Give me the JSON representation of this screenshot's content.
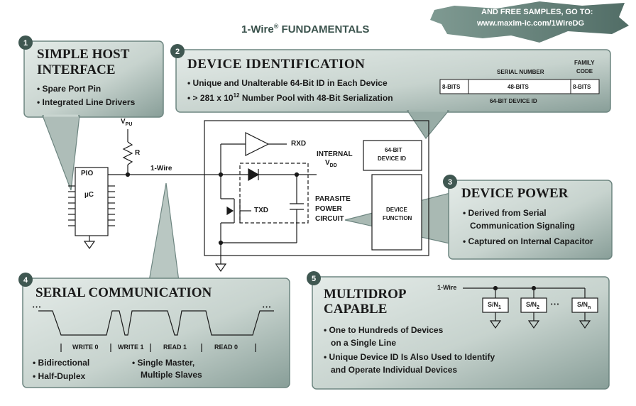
{
  "title": {
    "text": "1-Wire",
    "sup": "®",
    "rest": " FUNDAMENTALS"
  },
  "banner": {
    "line1": "AND FREE SAMPLES, GO TO:",
    "line2": "www.maxim-ic.com/1WireDG"
  },
  "colors": {
    "panel_light": "#d3dcd8",
    "panel_dark": "#7f9690",
    "badge": "#3f5751",
    "line": "#1a1a1a",
    "banner": "#5f7c74"
  },
  "panels": {
    "p1": {
      "badge": "1",
      "title_line1": "SIMPLE HOST",
      "title_line2": "INTERFACE",
      "bullets": [
        "Spare Port Pin",
        "Integrated Line Drivers"
      ]
    },
    "p2": {
      "badge": "2",
      "title": "DEVICE IDENTIFICATION",
      "bullet1": "Unique and Unalterable 64-Bit ID in Each Device",
      "bullet2_pre": "> 281 x 10",
      "bullet2_sup": "12",
      "bullet2_post": " Number Pool with 48-Bit Serialization",
      "id_table": {
        "serial_number_label": "SERIAL NUMBER",
        "family_label_line1": "FAMILY",
        "family_label_line2": "CODE",
        "cells": [
          "8-BITS",
          "48-BITS",
          "8-BITS"
        ],
        "caption": "64-BIT DEVICE ID"
      }
    },
    "p3": {
      "badge": "3",
      "title": "DEVICE POWER",
      "bullet1_line1": "Derived from Serial",
      "bullet1_line2": "Communication Signaling",
      "bullet2": "Captured on Internal Capacitor"
    },
    "p4": {
      "badge": "4",
      "title": "SERIAL COMMUNICATION",
      "slots": [
        "WRITE 0",
        "WRITE 1",
        "READ 1",
        "READ 0"
      ],
      "ellipsis": "• • •",
      "bullets_left": [
        "Bidirectional",
        "Half-Duplex"
      ],
      "bullet_right_line1": "Single Master,",
      "bullet_right_line2": "Multiple Slaves"
    },
    "p5": {
      "badge": "5",
      "title_line1": "MULTIDROP",
      "title_line2": "CAPABLE",
      "wire_label": "1-Wire",
      "devices": [
        "S/N",
        "S/N",
        "S/N"
      ],
      "device_subs": [
        "1",
        "2",
        "n"
      ],
      "dots": "• • •",
      "bullet1_line1": "One to Hundreds of Devices",
      "bullet1_line2": "on a Single Line",
      "bullet2_line1": "Unique Device ID Is Also Used to Identify",
      "bullet2_line2": "and Operate Individual Devices"
    }
  },
  "circuit": {
    "vpu": "V",
    "vpu_sub": "PU",
    "resistor": "R",
    "wire": "1-Wire",
    "pio": "PIO",
    "uc": "µC",
    "rxd": "RXD",
    "txd": "TXD",
    "internal": "INTERNAL",
    "vdd": "V",
    "vdd_sub": "DD",
    "parasite_line1": "PARASITE",
    "parasite_line2": "POWER",
    "parasite_line3": "CIRCUIT",
    "device_id_line1": "64-BIT",
    "device_id_line2": "DEVICE ID",
    "device_function_line1": "DEVICE",
    "device_function_line2": "FUNCTION"
  }
}
